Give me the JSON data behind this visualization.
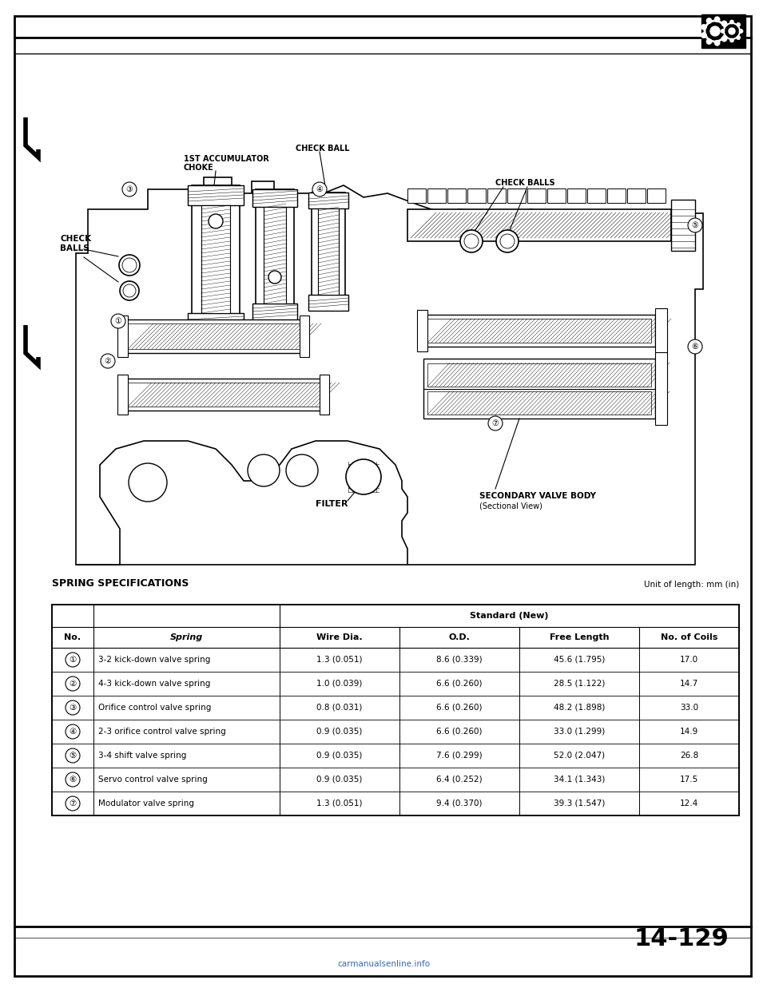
{
  "page_bg": "#ffffff",
  "title_page_num": "14-129",
  "watermark": "carmanualsenline.info",
  "table_title": "SPRING SPECIFICATIONS",
  "unit_text": "Unit of length: mm (in)",
  "col_headers": [
    "No.",
    "Spring",
    "Wire Dia.",
    "O.D.",
    "Free Length",
    "No. of Coils"
  ],
  "sub_header": "Standard (New)",
  "rows": [
    [
      "①",
      "3-2 kick-down valve spring",
      "1.3 (0.051)",
      "8.6 (0.339)",
      "45.6 (1.795)",
      "17.0"
    ],
    [
      "②",
      "4-3 kick-down valve spring",
      "1.0 (0.039)",
      "6.6 (0.260)",
      "28.5 (1.122)",
      "14.7"
    ],
    [
      "③",
      "Orifice control valve spring",
      "0.8 (0.031)",
      "6.6 (0.260)",
      "48.2 (1.898)",
      "33.0"
    ],
    [
      "④",
      "2-3 orifice control valve spring",
      "0.9 (0.035)",
      "6.6 (0.260)",
      "33.0 (1.299)",
      "14.9"
    ],
    [
      "⑤",
      "3-4 shift valve spring",
      "0.9 (0.035)",
      "7.6 (0.299)",
      "52.0 (2.047)",
      "26.8"
    ],
    [
      "⑥",
      "Servo control valve spring",
      "0.9 (0.035)",
      "6.4 (0.252)",
      "34.1 (1.343)",
      "17.5"
    ],
    [
      "⑦",
      "Modulator valve spring",
      "1.3 (0.051)",
      "9.4 (0.370)",
      "39.3 (1.547)",
      "12.4"
    ]
  ],
  "diag_labels": {
    "accum": "1ST ACCUMULATOR\nCHOKE",
    "check_ball": "CHECK BALL",
    "check_balls_right": "CHECK BALLS",
    "check_balls_left_line1": "CHECK",
    "check_balls_left_line2": "BALLS",
    "filter": "FILTER",
    "secondary": "SECONDARY VALVE BODY",
    "secondary2": "(Sectional View)"
  }
}
